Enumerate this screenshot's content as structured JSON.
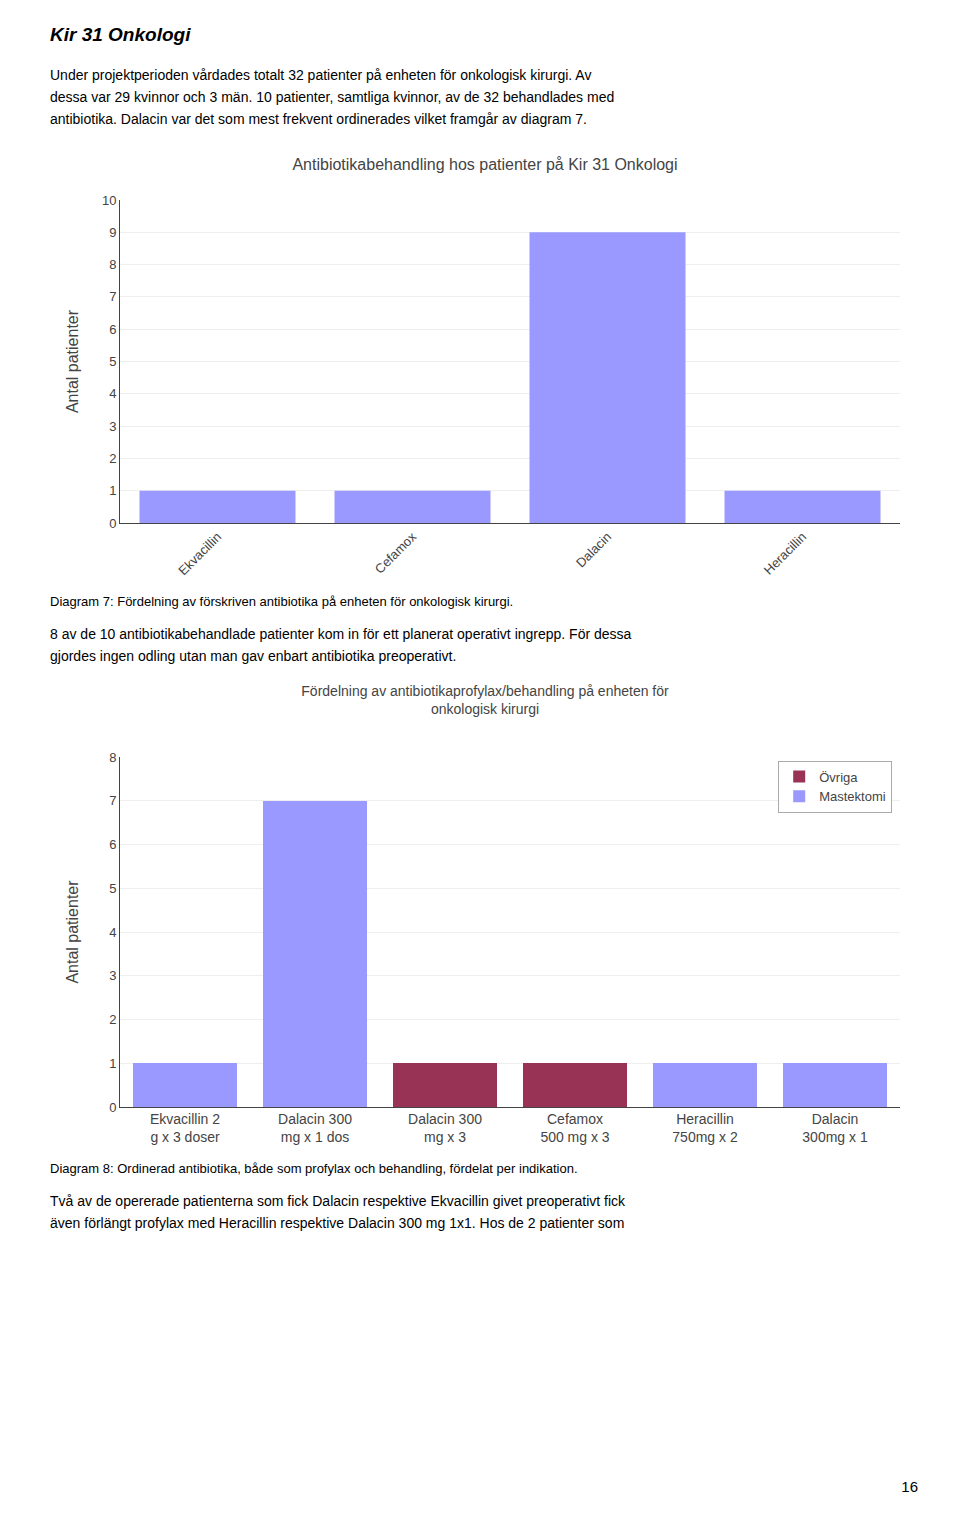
{
  "title": "Kir 31 Onkologi",
  "paragraphs": [
    [
      "Under projektperioden vårdades totalt 32 patienter på enheten för onkologisk kirurgi. Av",
      "dessa var 29 kvinnor och 3 män. 10 patienter, samtliga kvinnor, av de 32 behandlades med",
      "antibiotika. Dalacin var det som mest frekvent ordinerades vilket framgår av diagram 7."
    ],
    [
      "8 av de 10 antibiotikabehandlade patienter kom in för ett planerat operativt ingrepp. För dessa",
      "gjordes ingen odling utan man gav enbart antibiotika preoperativt."
    ],
    [
      "Två av de opererade patienterna som fick Dalacin respektive Ekvacillin givet preoperativt fick",
      "även förlängt profylax med Heracillin respektive Dalacin 300 mg 1x1. Hos de 2 patienter som"
    ]
  ],
  "page_number": "16",
  "chart_data": [
    {
      "type": "bar",
      "title": "Antibiotikabehandling hos patienter på Kir 31 Onkologi",
      "ylabel": "Antal patienter",
      "categories": [
        "Ekvacillin",
        "Cefamox",
        "Dalacin",
        "Heracillin"
      ],
      "values": [
        1,
        1,
        9,
        1
      ],
      "color": "#9999ff",
      "ylim": [
        0,
        10
      ],
      "yticks": [
        0,
        1,
        2,
        3,
        4,
        5,
        6,
        7,
        8,
        9,
        10
      ],
      "grid": true,
      "caption": "Diagram 7: Fördelning av förskriven antibiotika på enheten för onkologisk kirurgi."
    },
    {
      "type": "bar",
      "title": "Fördelning av antibiotikaprofylax/behandling på enheten för\nonkologisk kirurgi",
      "ylabel": "Antal patienter",
      "categories": [
        "Ekvacillin 2\ng x 3 doser",
        "Dalacin 300\nmg x 1 dos",
        "Dalacin 300\nmg x 3",
        "Cefamox\n500 mg x 3",
        "Heracillin\n750mg x 2",
        "Dalacin\n300mg x 1"
      ],
      "series": [
        {
          "name": "Mastektomi",
          "color": "#9999ff",
          "values": [
            1,
            7,
            0,
            0,
            1,
            1
          ]
        },
        {
          "name": "Övriga",
          "color": "#993355",
          "values": [
            0,
            0,
            1,
            1,
            0,
            0
          ]
        }
      ],
      "stacked": true,
      "legend": "upper right",
      "ylim": [
        0,
        8
      ],
      "yticks": [
        0,
        1,
        2,
        3,
        4,
        5,
        6,
        7,
        8
      ],
      "grid": true,
      "caption": "Diagram 8: Ordinerad antibiotika, både som profylax och behandling, fördelat per indikation."
    }
  ]
}
